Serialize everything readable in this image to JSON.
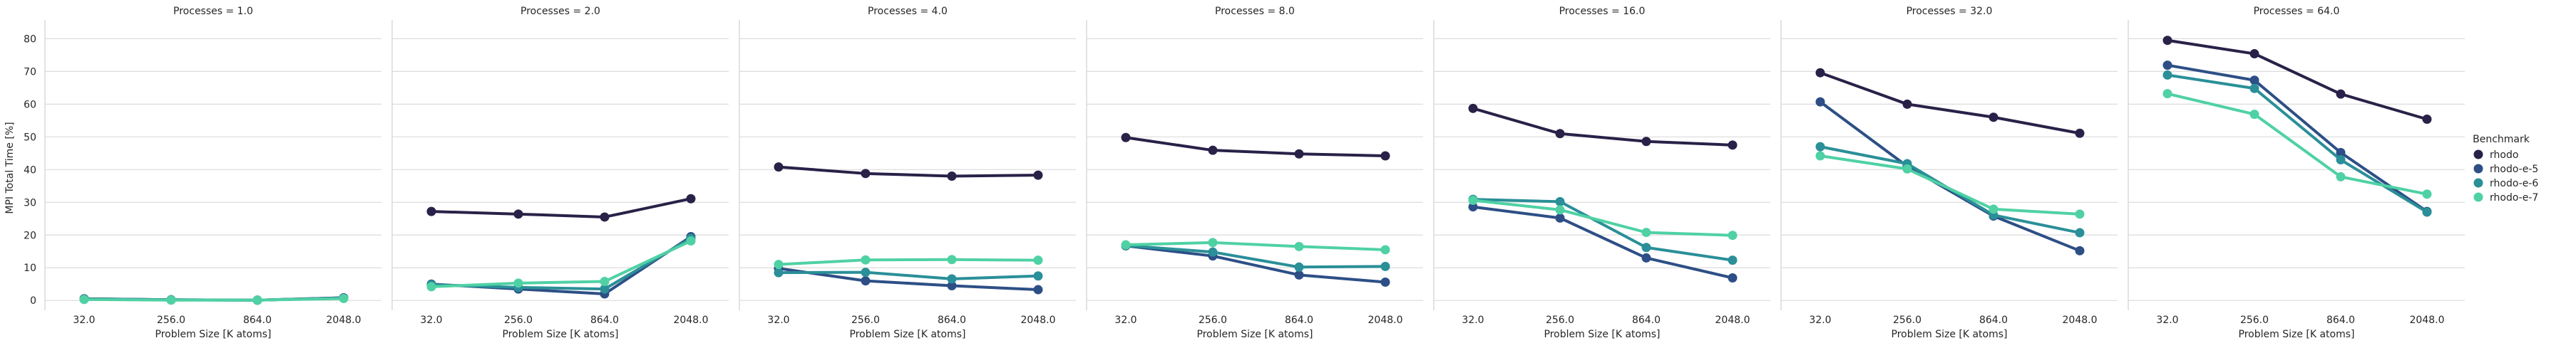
{
  "chart_data": {
    "type": "line",
    "ylabel": "MPI Total Time [%]",
    "xlabel": "Problem Size [K atoms]",
    "categories": [
      "32.0",
      "256.0",
      "864.0",
      "2048.0"
    ],
    "yticks": [
      0,
      10,
      20,
      30,
      40,
      50,
      60,
      70,
      80
    ],
    "ylim": [
      -3,
      84
    ],
    "grid": "horizontal",
    "legend": {
      "title": "Benchmark",
      "placement": "right",
      "entries": [
        "rhodo",
        "rhodo-e-5",
        "rhodo-e-6",
        "rhodo-e-7"
      ]
    },
    "series_colors": {
      "rhodo": "#2a2148",
      "rhodo-e-5": "#2d4f86",
      "rhodo-e-6": "#2a8f98",
      "rhodo-e-7": "#4fd1a4"
    },
    "panels": [
      {
        "title": "Processes = 1.0",
        "series": [
          {
            "name": "rhodo",
            "values": [
              0.5,
              0.2,
              0.1,
              0.8
            ]
          },
          {
            "name": "rhodo-e-5",
            "values": [
              0.5,
              0.2,
              0.1,
              0.8
            ]
          },
          {
            "name": "rhodo-e-6",
            "values": [
              0.4,
              0.2,
              0.1,
              0.7
            ]
          },
          {
            "name": "rhodo-e-7",
            "values": [
              0.3,
              0.1,
              0.1,
              0.6
            ]
          }
        ]
      },
      {
        "title": "Processes = 2.0",
        "series": [
          {
            "name": "rhodo",
            "values": [
              27.2,
              26.4,
              25.5,
              31.1
            ]
          },
          {
            "name": "rhodo-e-5",
            "values": [
              5.0,
              3.5,
              2.0,
              19.5
            ]
          },
          {
            "name": "rhodo-e-6",
            "values": [
              4.8,
              4.0,
              3.5,
              19.0
            ]
          },
          {
            "name": "rhodo-e-7",
            "values": [
              4.2,
              5.3,
              5.8,
              18.2
            ]
          }
        ]
      },
      {
        "title": "Processes = 4.0",
        "series": [
          {
            "name": "rhodo",
            "values": [
              40.8,
              38.8,
              38.0,
              38.3
            ]
          },
          {
            "name": "rhodo-e-5",
            "values": [
              9.8,
              6.0,
              4.5,
              3.3
            ]
          },
          {
            "name": "rhodo-e-6",
            "values": [
              8.5,
              8.6,
              6.6,
              7.5
            ]
          },
          {
            "name": "rhodo-e-7",
            "values": [
              11.0,
              12.4,
              12.5,
              12.3
            ]
          }
        ]
      },
      {
        "title": "Processes = 8.0",
        "series": [
          {
            "name": "rhodo",
            "values": [
              49.8,
              45.9,
              44.8,
              44.2
            ]
          },
          {
            "name": "rhodo-e-5",
            "values": [
              16.7,
              13.6,
              7.8,
              5.6
            ]
          },
          {
            "name": "rhodo-e-6",
            "values": [
              16.8,
              14.8,
              10.2,
              10.4
            ]
          },
          {
            "name": "rhodo-e-7",
            "values": [
              17.0,
              17.7,
              16.5,
              15.5
            ]
          }
        ]
      },
      {
        "title": "Processes = 16.0",
        "series": [
          {
            "name": "rhodo",
            "values": [
              58.7,
              51.0,
              48.6,
              47.5
            ]
          },
          {
            "name": "rhodo-e-5",
            "values": [
              28.6,
              25.2,
              13.0,
              6.9
            ]
          },
          {
            "name": "rhodo-e-6",
            "values": [
              30.9,
              30.2,
              16.2,
              12.3
            ]
          },
          {
            "name": "rhodo-e-7",
            "values": [
              30.6,
              27.7,
              20.8,
              19.9
            ]
          }
        ]
      },
      {
        "title": "Processes = 32.0",
        "series": [
          {
            "name": "rhodo",
            "values": [
              69.6,
              60.0,
              56.0,
              51.1
            ]
          },
          {
            "name": "rhodo-e-5",
            "values": [
              60.7,
              41.0,
              25.8,
              15.2
            ]
          },
          {
            "name": "rhodo-e-6",
            "values": [
              47.0,
              41.8,
              26.1,
              20.7
            ]
          },
          {
            "name": "rhodo-e-7",
            "values": [
              44.2,
              40.2,
              27.9,
              26.4
            ]
          }
        ]
      },
      {
        "title": "Processes = 64.0",
        "series": [
          {
            "name": "rhodo",
            "values": [
              79.5,
              75.4,
              63.1,
              55.4
            ]
          },
          {
            "name": "rhodo-e-5",
            "values": [
              71.9,
              67.3,
              45.2,
              27.2
            ]
          },
          {
            "name": "rhodo-e-6",
            "values": [
              68.9,
              64.8,
              43.0,
              27.0
            ]
          },
          {
            "name": "rhodo-e-7",
            "values": [
              63.2,
              56.9,
              37.8,
              32.5
            ]
          }
        ]
      }
    ]
  }
}
